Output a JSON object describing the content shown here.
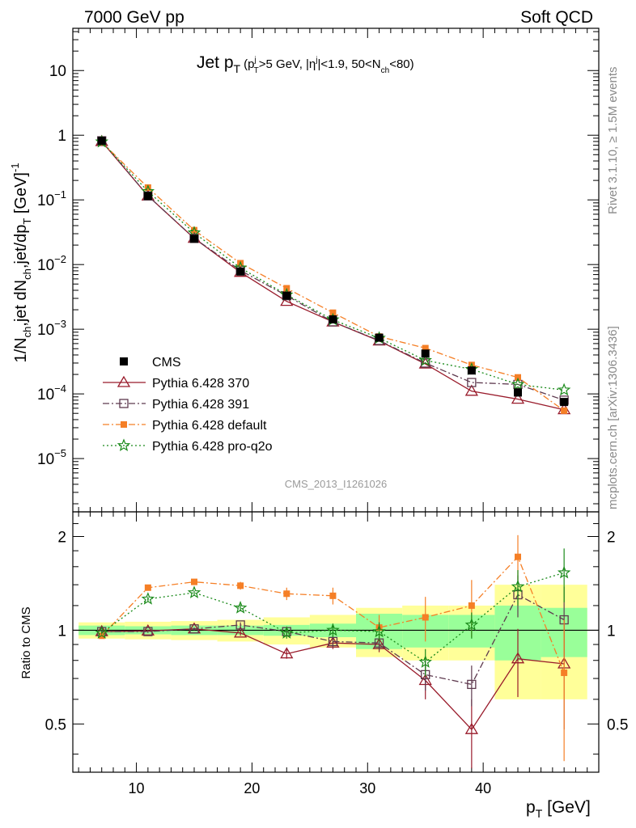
{
  "header": {
    "left": "7000 GeV pp",
    "right": "Soft QCD"
  },
  "side_labels": {
    "rivet": "Rivet 3.1.10, ≥ 1.5M events",
    "source": "mcplots.cern.ch [arXiv:1306.3436]"
  },
  "main_panel": {
    "title_main": "Jet p",
    "title_main_sub": "T",
    "title_cuts": {
      "open": "(p",
      "p_sup": "j",
      "p_sub": "T",
      "mid1": ">5 GeV, |η",
      "eta_sup": "j",
      "mid2": "|<1.9, 50<N",
      "n_sub": "ch",
      "close": "<80)"
    },
    "watermark": "CMS_2013_I1261026",
    "ylabel": {
      "p1": "1/N",
      "s1": "ch",
      "p2": ",jet dN",
      "s2": "ch",
      "p3": ",jet/dp",
      "s3": "T",
      "p4": " [GeV]",
      "sup": "-1"
    },
    "y_ticks": [
      {
        "value": 1e-05,
        "mantissa": "10",
        "exp": "−5"
      },
      {
        "value": 0.0001,
        "mantissa": "10",
        "exp": "−4"
      },
      {
        "value": 0.001,
        "mantissa": "10",
        "exp": "−3"
      },
      {
        "value": 0.01,
        "mantissa": "10",
        "exp": "−2"
      },
      {
        "value": 0.1,
        "mantissa": "10",
        "exp": "−1"
      },
      {
        "value": 1,
        "mantissa": "1",
        "exp": ""
      },
      {
        "value": 10,
        "mantissa": "10",
        "exp": ""
      }
    ]
  },
  "ratio_panel": {
    "ylabel": "Ratio to CMS",
    "y_ticks": [
      {
        "value": 0.5,
        "label": "0.5"
      },
      {
        "value": 1,
        "label": "1"
      },
      {
        "value": 2,
        "label": "2"
      }
    ]
  },
  "x_axis": {
    "label_main": "p",
    "label_sub": "T",
    "label_unit": " [GeV]",
    "ticks": [
      {
        "value": 10,
        "label": "10"
      },
      {
        "value": 20,
        "label": "20"
      },
      {
        "value": 30,
        "label": "30"
      },
      {
        "value": 40,
        "label": "40"
      }
    ]
  },
  "chart_data": {
    "type": "scatter",
    "x_scale": "linear",
    "xlim": [
      4.5,
      50
    ],
    "main_ylim": [
      1.5e-06,
      45
    ],
    "main_y_scale": "log",
    "ratio_ylim": [
      0.35,
      2.4
    ],
    "ratio_y_scale": "log",
    "legend_position": "bottom-left",
    "bins": [
      {
        "lo": 5,
        "hi": 9
      },
      {
        "lo": 9,
        "hi": 13
      },
      {
        "lo": 13,
        "hi": 17
      },
      {
        "lo": 17,
        "hi": 21
      },
      {
        "lo": 21,
        "hi": 25
      },
      {
        "lo": 25,
        "hi": 29
      },
      {
        "lo": 29,
        "hi": 33
      },
      {
        "lo": 33,
        "hi": 37
      },
      {
        "lo": 37,
        "hi": 41
      },
      {
        "lo": 41,
        "hi": 45
      },
      {
        "lo": 45,
        "hi": 49
      }
    ],
    "x": [
      7,
      11,
      15,
      19,
      23,
      27,
      31,
      35,
      39,
      43,
      47
    ],
    "data_band_stat": [
      0.035,
      0.03,
      0.035,
      0.035,
      0.04,
      0.05,
      0.13,
      0.12,
      0.12,
      0.2,
      0.18
    ],
    "data_band_total": [
      0.06,
      0.065,
      0.07,
      0.08,
      0.1,
      0.12,
      0.18,
      0.2,
      0.2,
      0.4,
      0.4
    ],
    "series": [
      {
        "name": "CMS",
        "color": "#000000",
        "marker": "square-filled",
        "line": "none",
        "values": [
          0.82,
          0.115,
          0.025,
          0.0078,
          0.0033,
          0.00142,
          0.00074,
          0.00042,
          0.00023,
          0.000105,
          7.5e-05
        ],
        "ratio": [
          1,
          1,
          1,
          1,
          1,
          1,
          1,
          1,
          1,
          1,
          1
        ]
      },
      {
        "name": "Pythia 6.428 370",
        "color": "#991b2b",
        "marker": "triangle-open",
        "line": "solid",
        "values": [
          0.8,
          0.115,
          0.0255,
          0.0076,
          0.0027,
          0.0013,
          0.00066,
          0.00029,
          0.00011,
          8.3e-05,
          5.7e-05
        ],
        "ratio": [
          0.99,
          0.995,
          1.01,
          0.98,
          0.84,
          0.91,
          0.9,
          0.69,
          0.48,
          0.81,
          0.78
        ],
        "ratio_err": [
          0.01,
          0.01,
          0.01,
          0.02,
          0.03,
          0.04,
          0.05,
          0.09,
          0.12,
          0.2,
          0.3
        ]
      },
      {
        "name": "Pythia 6.428 391",
        "color": "#5e3a4f",
        "marker": "square-open",
        "line": "dash-dot",
        "values": [
          0.82,
          0.115,
          0.0255,
          0.0081,
          0.0033,
          0.0013,
          0.00067,
          0.0003,
          0.00015,
          0.00014,
          8e-05
        ],
        "ratio": [
          0.99,
          0.99,
          1.01,
          1.04,
          0.99,
          0.92,
          0.91,
          0.72,
          0.67,
          1.3,
          1.08
        ],
        "ratio_err": [
          0.01,
          0.01,
          0.01,
          0.02,
          0.03,
          0.04,
          0.05,
          0.08,
          0.1,
          0.2,
          0.3
        ]
      },
      {
        "name": "Pythia 6.428 default",
        "color": "#f57f26",
        "marker": "square-filled-small",
        "line": "dash-dot",
        "values": [
          0.78,
          0.155,
          0.034,
          0.0105,
          0.0043,
          0.0018,
          0.00077,
          0.00051,
          0.00028,
          0.00018,
          5.5e-05
        ],
        "ratio": [
          0.96,
          1.37,
          1.43,
          1.39,
          1.31,
          1.29,
          1.02,
          1.1,
          1.2,
          1.72,
          0.73
        ],
        "ratio_err": [
          0.01,
          0.02,
          0.02,
          0.04,
          0.06,
          0.08,
          0.1,
          0.18,
          0.25,
          0.3,
          0.35
        ]
      },
      {
        "name": "Pythia 6.428 pro-q2o",
        "color": "#1a8a1a",
        "marker": "star-open",
        "line": "dotted",
        "values": [
          0.79,
          0.135,
          0.031,
          0.0089,
          0.0034,
          0.0014,
          0.00073,
          0.00033,
          0.00024,
          0.00014,
          0.000115
        ],
        "ratio": [
          0.98,
          1.26,
          1.32,
          1.18,
          0.98,
          1.0,
          0.99,
          0.79,
          1.04,
          1.38,
          1.53
        ],
        "ratio_err": [
          0.01,
          0.02,
          0.02,
          0.03,
          0.04,
          0.05,
          0.07,
          0.08,
          0.1,
          0.18,
          0.3
        ]
      }
    ]
  }
}
